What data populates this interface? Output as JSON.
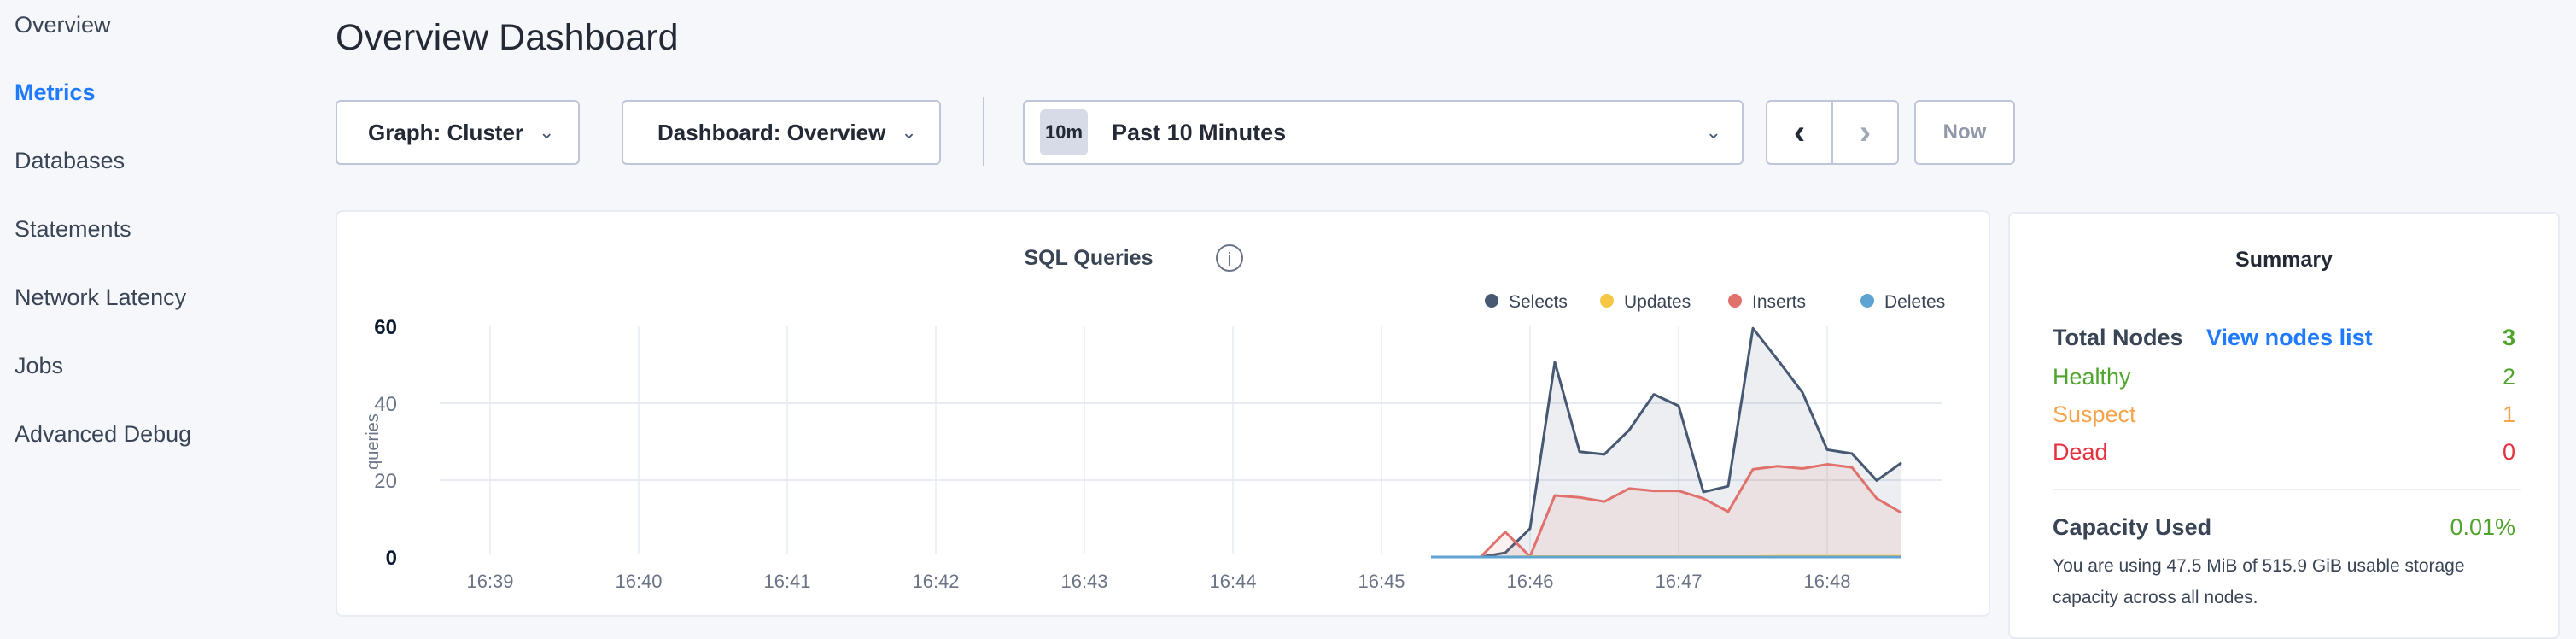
{
  "sidebar": {
    "items": [
      {
        "label": "Overview",
        "active": false
      },
      {
        "label": "Metrics",
        "active": true
      },
      {
        "label": "Databases",
        "active": false
      },
      {
        "label": "Statements",
        "active": false
      },
      {
        "label": "Network Latency",
        "active": false
      },
      {
        "label": "Jobs",
        "active": false
      },
      {
        "label": "Advanced Debug",
        "active": false
      }
    ]
  },
  "header": {
    "title": "Overview Dashboard"
  },
  "toolbar": {
    "graph_label": "Graph: Cluster",
    "dashboard_label": "Dashboard: Overview",
    "time_badge": "10m",
    "time_label": "Past 10 Minutes",
    "prev_icon": "chevron-left-icon",
    "next_icon": "chevron-right-icon",
    "now_label": "Now"
  },
  "chart": {
    "title": "SQL Queries",
    "info_icon": "info-icon"
  },
  "chart_data": {
    "type": "area",
    "title": "SQL Queries",
    "ylabel": "queries",
    "xlabel": "",
    "ylim": [
      0,
      60
    ],
    "yticks": [
      "0",
      "20",
      "40",
      "60"
    ],
    "xticks": [
      "16:39",
      "16:40",
      "16:41",
      "16:42",
      "16:43",
      "16:44",
      "16:45",
      "16:46",
      "16:47",
      "16:48"
    ],
    "grid": true,
    "legend_placement": "top-right",
    "x": [
      "16:45:20",
      "16:45:30",
      "16:45:40",
      "16:45:50",
      "16:46:00",
      "16:46:10",
      "16:46:20",
      "16:46:30",
      "16:46:40",
      "16:46:50",
      "16:47:00",
      "16:47:10",
      "16:47:20",
      "16:47:30",
      "16:47:40",
      "16:47:50",
      "16:48:00",
      "16:48:10",
      "16:48:20",
      "16:48:30"
    ],
    "series": [
      {
        "name": "Selects",
        "color": "#475872",
        "values": [
          0,
          0,
          0,
          1.1,
          7.4,
          50.7,
          27.4,
          26.7,
          33,
          42.3,
          39.3,
          16.9,
          18.4,
          59.5,
          51.3,
          42.8,
          27.9,
          26.9,
          19.9,
          24.5
        ]
      },
      {
        "name": "Updates",
        "color": "#f6c744",
        "values": [
          0,
          0,
          0,
          0,
          0.1,
          0.1,
          0.1,
          0.1,
          0.1,
          0.1,
          0.1,
          0.1,
          0.1,
          0.1,
          0.2,
          0.2,
          0.2,
          0.2,
          0.2,
          0.2
        ]
      },
      {
        "name": "Inserts",
        "color": "#e0716d",
        "values": [
          0,
          0,
          0,
          6.5,
          0.1,
          16,
          15.5,
          14.4,
          17.8,
          17.2,
          17.2,
          15.2,
          11.8,
          22.8,
          23.6,
          23,
          24.1,
          23.3,
          15.2,
          11.5
        ]
      },
      {
        "name": "Deletes",
        "color": "#5ea3d1",
        "values": [
          0,
          0,
          0,
          0,
          0,
          0,
          0,
          0,
          0,
          0,
          0,
          0,
          0,
          0,
          0,
          0,
          0,
          0,
          0,
          0
        ]
      }
    ]
  },
  "summary": {
    "title": "Summary",
    "total_nodes_label": "Total Nodes",
    "view_nodes_link": "View nodes list",
    "total_nodes": "3",
    "healthy_label": "Healthy",
    "healthy": "2",
    "suspect_label": "Suspect",
    "suspect": "1",
    "dead_label": "Dead",
    "dead": "0",
    "capacity_label": "Capacity Used",
    "capacity_value": "0.01%",
    "capacity_text": "You are using 47.5 MiB of 515.9 GiB usable storage capacity across all nodes.",
    "colors": {
      "healthy": "#4fa42c",
      "suspect": "#f5a44b",
      "dead": "#e5303f",
      "link": "#1f7aff"
    }
  }
}
